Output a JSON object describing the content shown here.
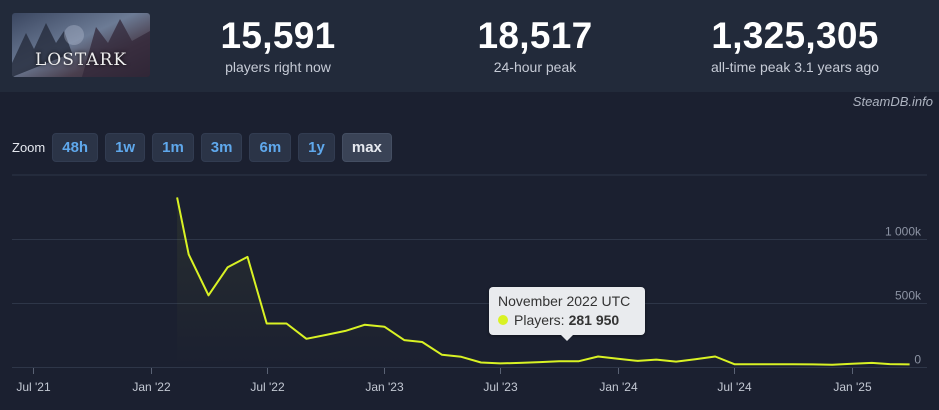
{
  "header": {
    "game_logo_text": "LOSTARK",
    "stats": [
      {
        "value": "15,591",
        "label": "players right now"
      },
      {
        "value": "18,517",
        "label": "24-hour peak"
      },
      {
        "value": "1,325,305",
        "label": "all-time peak 3.1 years ago"
      }
    ]
  },
  "watermark": "SteamDB.info",
  "zoom": {
    "label": "Zoom",
    "buttons": [
      "48h",
      "1w",
      "1m",
      "3m",
      "6m",
      "1y",
      "max"
    ],
    "active": "max"
  },
  "tooltip": {
    "title": "November 2022 UTC",
    "series_label": "Players:",
    "value": "281 950"
  },
  "colors": {
    "line": "#d9f224",
    "background": "#1b2030",
    "header": "#222a3a",
    "zoom_link": "#5fa8ec"
  },
  "chart_data": {
    "type": "line",
    "series": [
      {
        "name": "Players",
        "points": [
          [
            "2022-02-11",
            1325305
          ],
          [
            "2022-03-01",
            880000
          ],
          [
            "2022-04-01",
            560000
          ],
          [
            "2022-05-01",
            780000
          ],
          [
            "2022-06-01",
            860000
          ],
          [
            "2022-07-01",
            340000
          ],
          [
            "2022-08-01",
            340000
          ],
          [
            "2022-09-01",
            220000
          ],
          [
            "2022-10-01",
            250000
          ],
          [
            "2022-11-01",
            281950
          ],
          [
            "2022-12-01",
            330000
          ],
          [
            "2023-01-01",
            315000
          ],
          [
            "2023-02-01",
            210000
          ],
          [
            "2023-03-01",
            195000
          ],
          [
            "2023-04-01",
            95000
          ],
          [
            "2023-05-01",
            80000
          ],
          [
            "2023-06-01",
            35000
          ],
          [
            "2023-07-01",
            28000
          ],
          [
            "2023-08-01",
            32000
          ],
          [
            "2023-09-01",
            38000
          ],
          [
            "2023-10-01",
            45000
          ],
          [
            "2023-11-01",
            45000
          ],
          [
            "2023-12-01",
            82000
          ],
          [
            "2024-01-01",
            65000
          ],
          [
            "2024-02-01",
            48000
          ],
          [
            "2024-03-01",
            58000
          ],
          [
            "2024-04-01",
            42000
          ],
          [
            "2024-05-01",
            60000
          ],
          [
            "2024-06-01",
            82000
          ],
          [
            "2024-07-01",
            22000
          ],
          [
            "2024-08-01",
            22000
          ],
          [
            "2024-09-01",
            22000
          ],
          [
            "2024-10-01",
            22000
          ],
          [
            "2024-11-01",
            20000
          ],
          [
            "2024-12-01",
            18000
          ],
          [
            "2025-01-01",
            26000
          ],
          [
            "2025-02-01",
            32000
          ],
          [
            "2025-03-01",
            23000
          ],
          [
            "2025-04-01",
            20000
          ]
        ]
      }
    ],
    "y_ticks": [
      {
        "value": 1000000,
        "label": "1 000k"
      },
      {
        "value": 500000,
        "label": "500k"
      },
      {
        "value": 0,
        "label": "0"
      }
    ],
    "x_ticks": [
      {
        "date": "2021-07-01",
        "label": "Jul '21"
      },
      {
        "date": "2022-01-01",
        "label": "Jan '22"
      },
      {
        "date": "2022-07-01",
        "label": "Jul '22"
      },
      {
        "date": "2023-01-01",
        "label": "Jan '23"
      },
      {
        "date": "2023-07-01",
        "label": "Jul '23"
      },
      {
        "date": "2024-01-01",
        "label": "Jan '24"
      },
      {
        "date": "2024-07-01",
        "label": "Jul '24"
      },
      {
        "date": "2025-01-01",
        "label": "Jan '25"
      }
    ],
    "ylim": [
      0,
      1500000
    ],
    "xlim": [
      "2021-06-01",
      "2025-04-25"
    ],
    "grid": true,
    "highlighted_point": "2022-11-01"
  }
}
